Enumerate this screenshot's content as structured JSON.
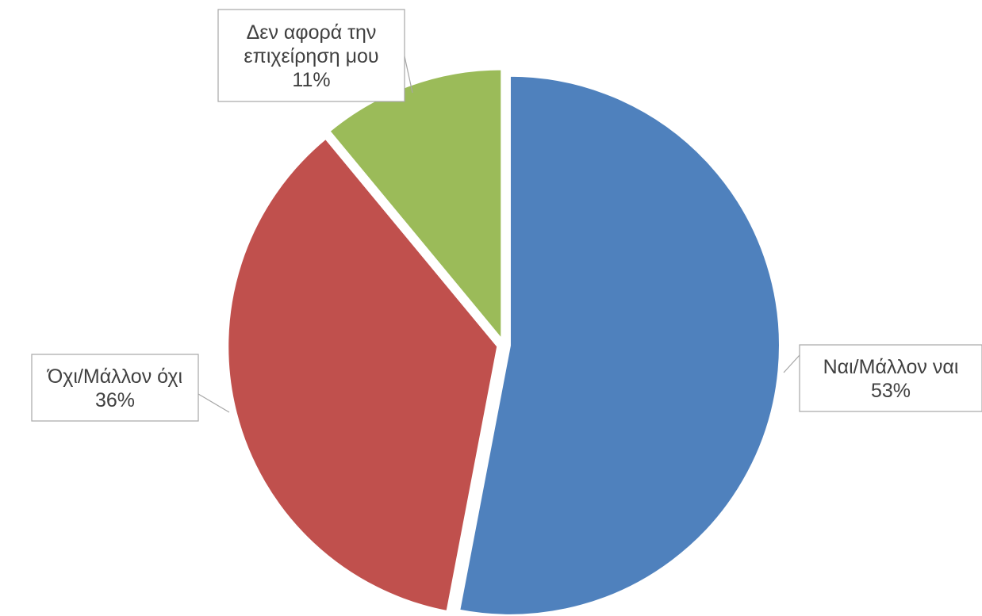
{
  "chart_data": {
    "type": "pie",
    "categories": [
      "Ναι/Μάλλον ναι",
      "Όχι/Μάλλον όχι",
      "Δεν αφορά την επιχείρηση μου"
    ],
    "values": [
      53,
      36,
      11
    ],
    "value_labels": [
      "53%",
      "36%",
      "11%"
    ],
    "colors": [
      "#4F81BD",
      "#C0504D",
      "#9BBB59"
    ],
    "legend": "none",
    "labels": [
      {
        "lines": [
          "Ναι/Μάλλον ναι",
          "53%"
        ]
      },
      {
        "lines": [
          "Όχι/Μάλλον όχι",
          "36%"
        ]
      },
      {
        "lines": [
          "Δεν αφορά την",
          "επιχείρηση μου",
          "11%"
        ]
      }
    ]
  }
}
